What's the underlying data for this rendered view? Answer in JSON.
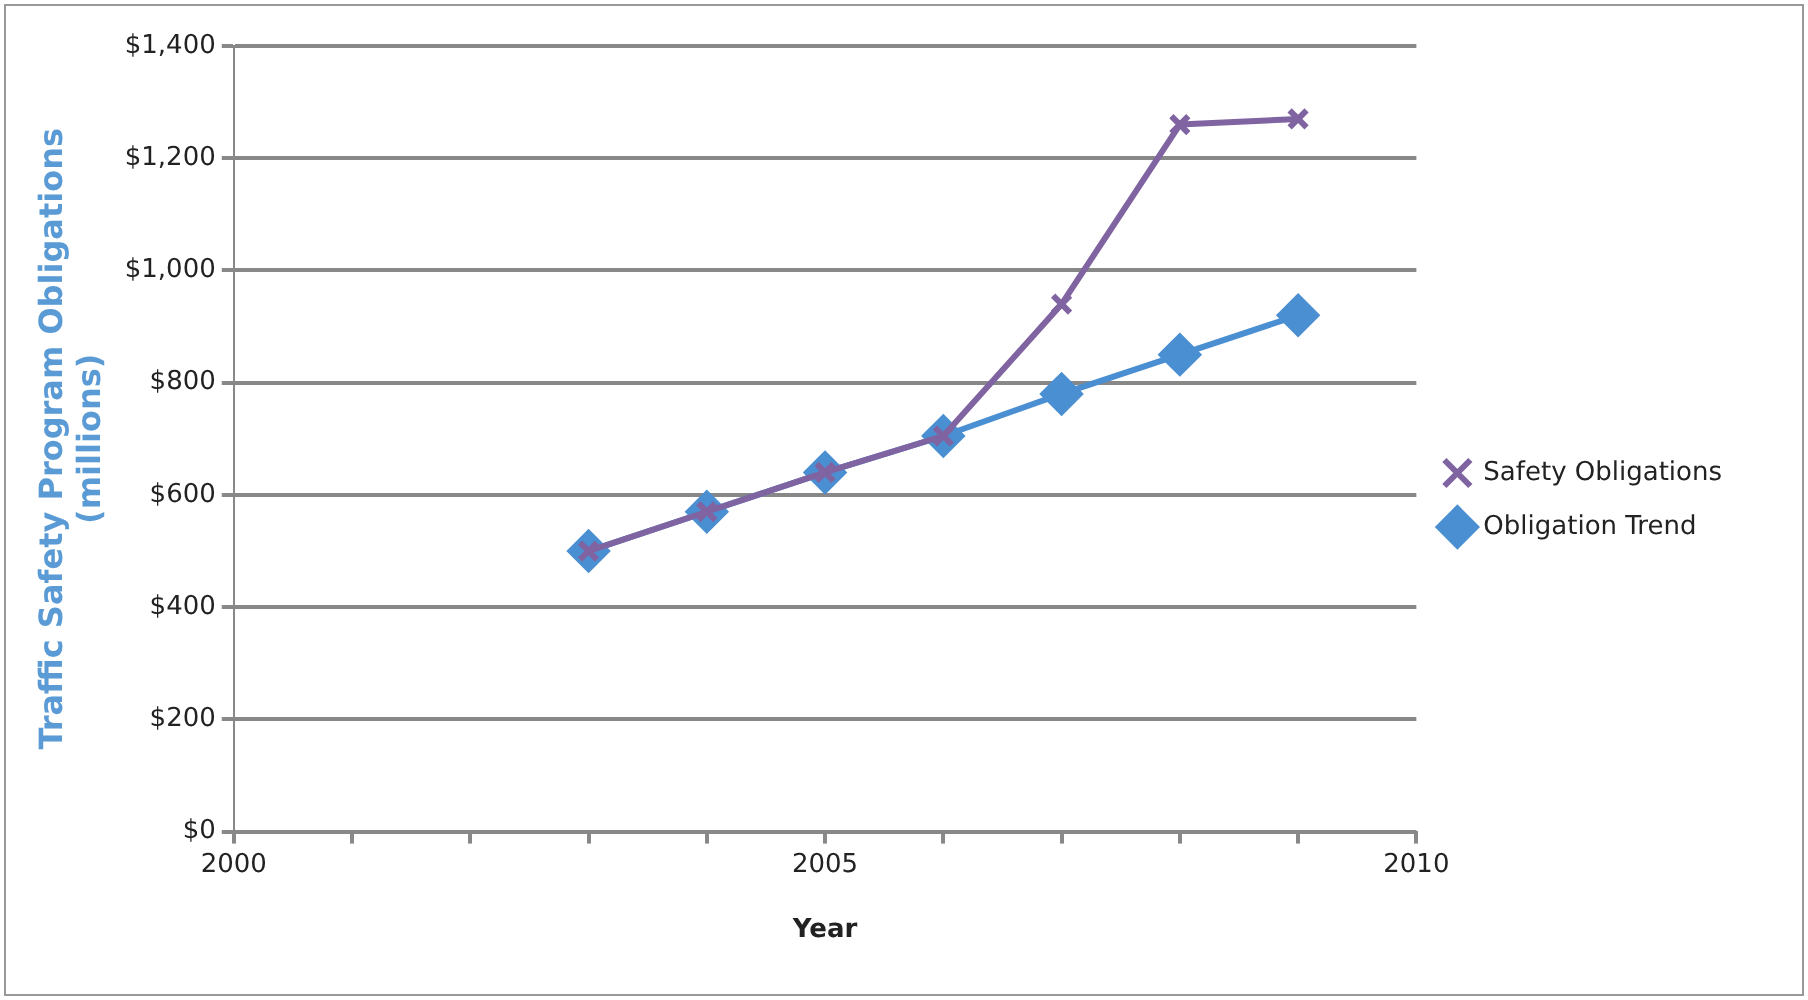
{
  "chart_data": {
    "type": "line",
    "xlabel": "Year",
    "ylabel": "Traffic Safety Program Obligations\n(millions)",
    "xlim": [
      2000,
      2010
    ],
    "xticks": [
      2000,
      {
        "value": 2001,
        "label": null
      },
      {
        "value": 2002,
        "label": null
      },
      {
        "value": 2003,
        "label": null
      },
      {
        "value": 2004,
        "label": null
      },
      2005,
      {
        "value": 2006,
        "label": null
      },
      {
        "value": 2007,
        "label": null
      },
      {
        "value": 2008,
        "label": null
      },
      {
        "value": 2009,
        "label": null
      },
      2010
    ],
    "ylim": [
      0,
      1400
    ],
    "yticks": [
      {
        "value": 0,
        "label": "$0"
      },
      {
        "value": 200,
        "label": "$200"
      },
      {
        "value": 400,
        "label": "$400"
      },
      {
        "value": 600,
        "label": "$600"
      },
      {
        "value": 800,
        "label": "$800"
      },
      {
        "value": 1000,
        "label": "$1,000"
      },
      {
        "value": 1200,
        "label": "$1,200"
      },
      {
        "value": 1400,
        "label": "$1,400"
      }
    ],
    "grid": "y",
    "legend": "right",
    "line_style": "solid",
    "x": [
      2003,
      2004,
      2005,
      2006,
      2007,
      2008,
      2009
    ],
    "series": [
      {
        "name": "Safety Obligations",
        "color": "#8064a2",
        "marker": "cross",
        "values": [
          500,
          570,
          640,
          705,
          940,
          1260,
          1270
        ]
      },
      {
        "name": "Obligation Trend",
        "color": "#4a8fd2",
        "marker": "diamond",
        "values": [
          500,
          570,
          640,
          705,
          780,
          850,
          920
        ]
      }
    ]
  }
}
